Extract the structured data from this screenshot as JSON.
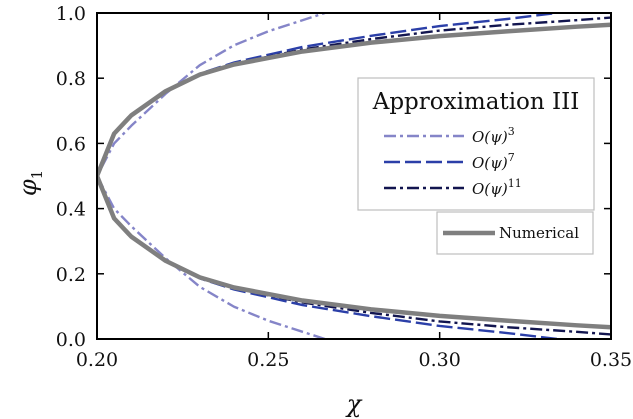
{
  "chart_data": {
    "type": "line",
    "title": "",
    "xlabel": "χ",
    "ylabel": "φ",
    "ylabel_subscript": "1",
    "xlim": [
      0.2,
      0.35
    ],
    "ylim": [
      0.0,
      1.0
    ],
    "xticks": [
      "0.20",
      "0.25",
      "0.30",
      "0.35"
    ],
    "yticks": [
      "0.0",
      "0.2",
      "0.4",
      "0.6",
      "0.8",
      "1.0"
    ],
    "grid": false,
    "legend_title": "Approximation III",
    "legend_placement": "right",
    "series": [
      {
        "name": "O(ψ)^3",
        "label_main": "O(ψ)",
        "label_exp": "3",
        "color": "#8585c8",
        "style": "dashdot",
        "points": [
          [
            0.2665,
            0.0
          ],
          [
            0.25,
            0.056
          ],
          [
            0.24,
            0.099
          ],
          [
            0.23,
            0.16
          ],
          [
            0.22,
            0.248
          ],
          [
            0.21,
            0.346
          ],
          [
            0.205,
            0.4
          ],
          [
            0.2,
            0.5
          ],
          [
            0.205,
            0.6
          ],
          [
            0.21,
            0.654
          ],
          [
            0.22,
            0.752
          ],
          [
            0.23,
            0.84
          ],
          [
            0.24,
            0.901
          ],
          [
            0.25,
            0.944
          ],
          [
            0.2665,
            1.0
          ]
        ]
      },
      {
        "name": "O(ψ)^7",
        "label_main": "O(ψ)",
        "label_exp": "7",
        "color": "#2b3fa8",
        "style": "dashed",
        "points": [
          [
            0.3342,
            0.0
          ],
          [
            0.32,
            0.018
          ],
          [
            0.3,
            0.04
          ],
          [
            0.28,
            0.07
          ],
          [
            0.26,
            0.104
          ],
          [
            0.24,
            0.152
          ],
          [
            0.23,
            0.186
          ],
          [
            0.22,
            0.238
          ],
          [
            0.21,
            0.312
          ],
          [
            0.205,
            0.368
          ],
          [
            0.2,
            0.5
          ],
          [
            0.205,
            0.632
          ],
          [
            0.21,
            0.688
          ],
          [
            0.22,
            0.762
          ],
          [
            0.23,
            0.814
          ],
          [
            0.24,
            0.848
          ],
          [
            0.26,
            0.896
          ],
          [
            0.28,
            0.93
          ],
          [
            0.3,
            0.96
          ],
          [
            0.32,
            0.982
          ],
          [
            0.3342,
            1.0
          ]
        ]
      },
      {
        "name": "O(ψ)^11",
        "label_main": "O(ψ)",
        "label_exp": "11",
        "color": "#12154f",
        "style": "dashdot",
        "points": [
          [
            0.35,
            0.014
          ],
          [
            0.34,
            0.022
          ],
          [
            0.32,
            0.036
          ],
          [
            0.3,
            0.054
          ],
          [
            0.28,
            0.08
          ],
          [
            0.26,
            0.112
          ],
          [
            0.24,
            0.156
          ],
          [
            0.23,
            0.188
          ],
          [
            0.22,
            0.24
          ],
          [
            0.21,
            0.314
          ],
          [
            0.205,
            0.37
          ],
          [
            0.2,
            0.5
          ],
          [
            0.205,
            0.63
          ],
          [
            0.21,
            0.686
          ],
          [
            0.22,
            0.76
          ],
          [
            0.23,
            0.812
          ],
          [
            0.24,
            0.844
          ],
          [
            0.26,
            0.888
          ],
          [
            0.28,
            0.92
          ],
          [
            0.3,
            0.946
          ],
          [
            0.32,
            0.964
          ],
          [
            0.34,
            0.978
          ],
          [
            0.35,
            0.986
          ]
        ]
      },
      {
        "name": "Numerical",
        "label_main": "Numerical",
        "label_exp": "",
        "color": "#7f7f7f",
        "style": "solid",
        "points": [
          [
            0.35,
            0.036
          ],
          [
            0.34,
            0.042
          ],
          [
            0.32,
            0.056
          ],
          [
            0.3,
            0.071
          ],
          [
            0.28,
            0.091
          ],
          [
            0.26,
            0.118
          ],
          [
            0.24,
            0.158
          ],
          [
            0.23,
            0.189
          ],
          [
            0.22,
            0.24
          ],
          [
            0.21,
            0.314
          ],
          [
            0.205,
            0.37
          ],
          [
            0.2,
            0.5
          ],
          [
            0.205,
            0.63
          ],
          [
            0.21,
            0.686
          ],
          [
            0.22,
            0.76
          ],
          [
            0.23,
            0.811
          ],
          [
            0.24,
            0.842
          ],
          [
            0.26,
            0.882
          ],
          [
            0.28,
            0.909
          ],
          [
            0.3,
            0.929
          ],
          [
            0.32,
            0.944
          ],
          [
            0.34,
            0.958
          ],
          [
            0.35,
            0.964
          ]
        ]
      }
    ]
  }
}
